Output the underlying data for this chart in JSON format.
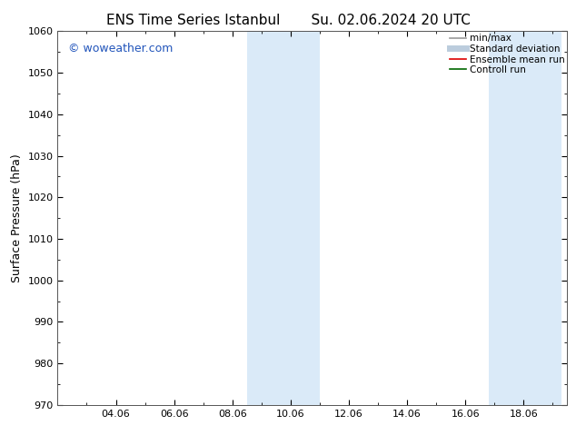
{
  "title_left": "ENS Time Series Istanbul",
  "title_right": "Su. 02.06.2024 20 UTC",
  "ylabel": "Surface Pressure (hPa)",
  "ylim": [
    970,
    1060
  ],
  "yticks": [
    970,
    980,
    990,
    1000,
    1010,
    1020,
    1030,
    1040,
    1050,
    1060
  ],
  "xtick_labels": [
    "04.06",
    "06.06",
    "08.06",
    "10.06",
    "12.06",
    "14.06",
    "16.06",
    "18.06"
  ],
  "xtick_positions": [
    2,
    4,
    6,
    8,
    10,
    12,
    14,
    16
  ],
  "xlim": [
    0,
    17.5
  ],
  "shaded_bands": [
    {
      "x_start": 6.5,
      "x_end": 9.0
    },
    {
      "x_start": 14.8,
      "x_end": 17.3
    }
  ],
  "shaded_color": "#daeaf8",
  "background_color": "#ffffff",
  "watermark_text": "© woweather.com",
  "watermark_color": "#2255bb",
  "legend_items": [
    {
      "label": "min/max",
      "color": "#999999",
      "lw": 1.2
    },
    {
      "label": "Standard deviation",
      "color": "#bbccdd",
      "lw": 5
    },
    {
      "label": "Ensemble mean run",
      "color": "#dd0000",
      "lw": 1.2
    },
    {
      "label": "Controll run",
      "color": "#006600",
      "lw": 1.2
    }
  ],
  "title_fontsize": 11,
  "tick_fontsize": 8,
  "ylabel_fontsize": 9,
  "watermark_fontsize": 9,
  "spine_color": "#555555"
}
